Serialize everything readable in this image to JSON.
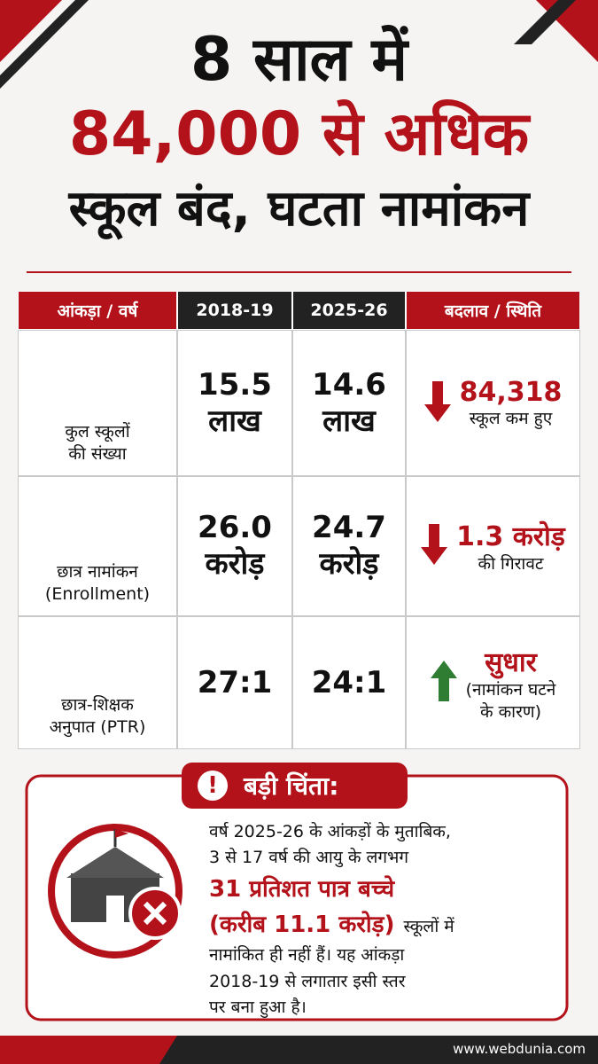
{
  "header": {
    "title_lines": [
      "8 साल में",
      "84,000 से अधिक",
      "स्कूल बंद, घटता नामांकन"
    ]
  },
  "table": {
    "columns": [
      "आंकड़ा / वर्ष",
      "2018-19",
      "2025-26",
      "बदलाव / स्थिति"
    ],
    "rows": [
      {
        "label": [
          "कुल स्कूलों",
          "की संख्या"
        ],
        "before": [
          "15.5",
          "लाख"
        ],
        "after": [
          "14.6",
          "लाख"
        ],
        "change": "84,318",
        "change_note": [
          "स्कूल कम हुए"
        ],
        "trend": "down"
      },
      {
        "label": [
          "छात्र नामांकन",
          "(Enrollment)"
        ],
        "before": [
          "26.0",
          "करोड़"
        ],
        "after": [
          "24.7",
          "करोड़"
        ],
        "change": "1.3 करोड़",
        "change_note": [
          "की गिरावट"
        ],
        "trend": "down"
      },
      {
        "label": [
          "छात्र-शिक्षक",
          "अनुपात (PTR)"
        ],
        "before": [
          "27:1"
        ],
        "after": [
          "24:1"
        ],
        "change": "सुधार",
        "change_note": [
          "(नामांकन घटने",
          "के कारण)"
        ],
        "trend": "up"
      }
    ]
  },
  "concern": {
    "title": "बड़ी चिंता:",
    "lines": [
      [
        {
          "text": "वर्ष 2025-26 के आंकड़ों के मुताबिक,",
          "emphasis": false
        }
      ],
      [
        {
          "text": "3 से 17 वर्ष की आयु के लगभग",
          "emphasis": false
        }
      ],
      [
        {
          "text": "31 प्रतिशत पात्र बच्चे",
          "emphasis": true
        }
      ],
      [
        {
          "text": "(करीब 11.1 करोड़)",
          "emphasis": true
        },
        {
          "text": "स्कूलों में",
          "emphasis": false
        }
      ],
      [
        {
          "text": "नामांकित ही नहीं हैं। यह आंकड़ा",
          "emphasis": false
        }
      ],
      [
        {
          "text": "2018-19 से लगातार इसी स्तर",
          "emphasis": false
        }
      ],
      [
        {
          "text": "पर बना हुआ है।",
          "emphasis": false
        }
      ]
    ]
  },
  "footer": "www.webdunia.com"
}
